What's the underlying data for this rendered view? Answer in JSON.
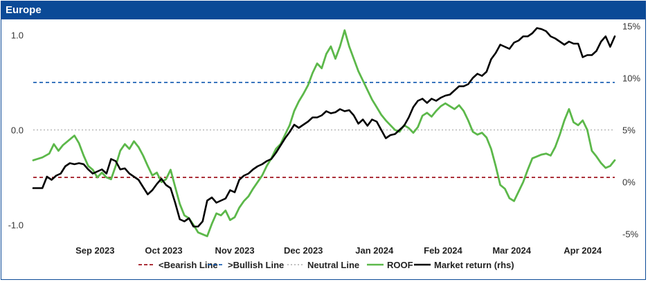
{
  "panel": {
    "title": "Europe"
  },
  "chart_data": {
    "type": "line",
    "title": "Europe",
    "x_labels": [
      "Sep 2023",
      "Oct 2023",
      "Nov 2023",
      "Dec 2023",
      "Jan 2024",
      "Feb 2024",
      "Mar 2024",
      "Apr 2024"
    ],
    "left_axis": {
      "ticks": [
        "1.0",
        "0.0",
        "-1.0"
      ],
      "ylim": [
        -1.15,
        1.15
      ]
    },
    "right_axis": {
      "ticks": [
        "15%",
        "10%",
        "5%",
        "0%",
        "-5%"
      ],
      "ylim": [
        -5.5,
        15.5
      ]
    },
    "reference_lines": [
      {
        "name": "<Bearish Line",
        "value": -0.5,
        "color": "#a0141e",
        "dash": "dashed"
      },
      {
        "name": ">Bullish Line",
        "value": 0.5,
        "color": "#1f63b5",
        "dash": "dashed"
      },
      {
        "name": "Neutral Line",
        "value": 0.0,
        "color": "#b8b8b8",
        "dash": "dotted"
      }
    ],
    "series": [
      {
        "name": "ROOF",
        "axis": "left",
        "color": "#5cb84a",
        "points": [
          [
            "2023-08-20",
            -0.32
          ],
          [
            "2023-08-24",
            -0.29
          ],
          [
            "2023-08-27",
            -0.25
          ],
          [
            "2023-08-29",
            -0.15
          ],
          [
            "2023-08-31",
            -0.22
          ],
          [
            "2023-09-02",
            -0.16
          ],
          [
            "2023-09-05",
            -0.1
          ],
          [
            "2023-09-07",
            -0.06
          ],
          [
            "2023-09-09",
            -0.14
          ],
          [
            "2023-09-11",
            -0.27
          ],
          [
            "2023-09-13",
            -0.38
          ],
          [
            "2023-09-15",
            -0.42
          ],
          [
            "2023-09-17",
            -0.5
          ],
          [
            "2023-09-19",
            -0.45
          ],
          [
            "2023-09-21",
            -0.5
          ],
          [
            "2023-09-23",
            -0.52
          ],
          [
            "2023-09-25",
            -0.38
          ],
          [
            "2023-09-27",
            -0.22
          ],
          [
            "2023-09-29",
            -0.15
          ],
          [
            "2023-10-01",
            -0.2
          ],
          [
            "2023-10-03",
            -0.12
          ],
          [
            "2023-10-05",
            -0.18
          ],
          [
            "2023-10-07",
            -0.27
          ],
          [
            "2023-10-09",
            -0.38
          ],
          [
            "2023-10-11",
            -0.48
          ],
          [
            "2023-10-13",
            -0.45
          ],
          [
            "2023-10-15",
            -0.55
          ],
          [
            "2023-10-17",
            -0.52
          ],
          [
            "2023-10-19",
            -0.42
          ],
          [
            "2023-10-21",
            -0.6
          ],
          [
            "2023-10-23",
            -0.78
          ],
          [
            "2023-10-25",
            -0.9
          ],
          [
            "2023-10-27",
            -0.93
          ],
          [
            "2023-10-29",
            -1.0
          ],
          [
            "2023-10-31",
            -1.08
          ],
          [
            "2023-11-02",
            -1.1
          ],
          [
            "2023-11-04",
            -1.12
          ],
          [
            "2023-11-06",
            -0.99
          ],
          [
            "2023-11-08",
            -0.88
          ],
          [
            "2023-11-10",
            -0.9
          ],
          [
            "2023-11-12",
            -0.85
          ],
          [
            "2023-11-14",
            -0.95
          ],
          [
            "2023-11-16",
            -0.92
          ],
          [
            "2023-11-18",
            -0.82
          ],
          [
            "2023-11-20",
            -0.75
          ],
          [
            "2023-11-22",
            -0.7
          ],
          [
            "2023-11-24",
            -0.62
          ],
          [
            "2023-11-26",
            -0.55
          ],
          [
            "2023-11-28",
            -0.48
          ],
          [
            "2023-11-30",
            -0.38
          ],
          [
            "2023-12-02",
            -0.3
          ],
          [
            "2023-12-04",
            -0.2
          ],
          [
            "2023-12-06",
            -0.15
          ],
          [
            "2023-12-08",
            -0.05
          ],
          [
            "2023-12-10",
            0.05
          ],
          [
            "2023-12-12",
            0.2
          ],
          [
            "2023-12-14",
            0.3
          ],
          [
            "2023-12-16",
            0.38
          ],
          [
            "2023-12-18",
            0.47
          ],
          [
            "2023-12-20",
            0.6
          ],
          [
            "2023-12-22",
            0.7
          ],
          [
            "2023-12-24",
            0.65
          ],
          [
            "2023-12-26",
            0.8
          ],
          [
            "2023-12-28",
            0.88
          ],
          [
            "2023-12-30",
            0.75
          ],
          [
            "2024-01-01",
            0.88
          ],
          [
            "2024-01-03",
            1.05
          ],
          [
            "2024-01-05",
            0.88
          ],
          [
            "2024-01-07",
            0.75
          ],
          [
            "2024-01-09",
            0.62
          ],
          [
            "2024-01-11",
            0.52
          ],
          [
            "2024-01-13",
            0.42
          ],
          [
            "2024-01-15",
            0.32
          ],
          [
            "2024-01-17",
            0.24
          ],
          [
            "2024-01-19",
            0.16
          ],
          [
            "2024-01-21",
            0.1
          ],
          [
            "2024-01-23",
            0.05
          ],
          [
            "2024-01-25",
            0.0
          ],
          [
            "2024-01-27",
            -0.02
          ],
          [
            "2024-01-29",
            0.05
          ],
          [
            "2024-01-31",
            0.02
          ],
          [
            "2024-02-02",
            -0.03
          ],
          [
            "2024-02-04",
            0.03
          ],
          [
            "2024-02-06",
            0.15
          ],
          [
            "2024-02-08",
            0.18
          ],
          [
            "2024-02-10",
            0.14
          ],
          [
            "2024-02-12",
            0.2
          ],
          [
            "2024-02-14",
            0.25
          ],
          [
            "2024-02-16",
            0.28
          ],
          [
            "2024-02-18",
            0.25
          ],
          [
            "2024-02-20",
            0.22
          ],
          [
            "2024-02-22",
            0.26
          ],
          [
            "2024-02-24",
            0.2
          ],
          [
            "2024-02-26",
            0.1
          ],
          [
            "2024-02-28",
            -0.02
          ],
          [
            "2024-03-01",
            -0.05
          ],
          [
            "2024-03-03",
            -0.03
          ],
          [
            "2024-03-05",
            -0.08
          ],
          [
            "2024-03-07",
            -0.2
          ],
          [
            "2024-03-09",
            -0.38
          ],
          [
            "2024-03-11",
            -0.58
          ],
          [
            "2024-03-13",
            -0.62
          ],
          [
            "2024-03-15",
            -0.72
          ],
          [
            "2024-03-17",
            -0.75
          ],
          [
            "2024-03-19",
            -0.65
          ],
          [
            "2024-03-21",
            -0.55
          ],
          [
            "2024-03-23",
            -0.42
          ],
          [
            "2024-03-25",
            -0.3
          ],
          [
            "2024-03-27",
            -0.28
          ],
          [
            "2024-03-29",
            -0.26
          ],
          [
            "2024-03-31",
            -0.25
          ],
          [
            "2024-04-02",
            -0.27
          ],
          [
            "2024-04-04",
            -0.18
          ],
          [
            "2024-04-06",
            -0.05
          ],
          [
            "2024-04-08",
            0.1
          ],
          [
            "2024-04-10",
            0.22
          ],
          [
            "2024-04-12",
            0.08
          ],
          [
            "2024-04-14",
            0.05
          ],
          [
            "2024-04-16",
            0.1
          ],
          [
            "2024-04-18",
            0.0
          ],
          [
            "2024-04-20",
            -0.22
          ],
          [
            "2024-04-22",
            -0.28
          ],
          [
            "2024-04-24",
            -0.35
          ],
          [
            "2024-04-26",
            -0.4
          ],
          [
            "2024-04-28",
            -0.38
          ],
          [
            "2024-04-30",
            -0.32
          ]
        ]
      },
      {
        "name": "Market return (rhs)",
        "axis": "right",
        "color": "#000000",
        "points": [
          [
            "2023-08-20",
            -0.6
          ],
          [
            "2023-08-24",
            -0.6
          ],
          [
            "2023-08-26",
            0.5
          ],
          [
            "2023-08-28",
            0.2
          ],
          [
            "2023-08-30",
            0.6
          ],
          [
            "2023-09-01",
            0.8
          ],
          [
            "2023-09-03",
            1.5
          ],
          [
            "2023-09-05",
            1.8
          ],
          [
            "2023-09-07",
            1.7
          ],
          [
            "2023-09-09",
            1.8
          ],
          [
            "2023-09-11",
            1.7
          ],
          [
            "2023-09-13",
            1.2
          ],
          [
            "2023-09-15",
            0.8
          ],
          [
            "2023-09-17",
            1.0
          ],
          [
            "2023-09-19",
            1.2
          ],
          [
            "2023-09-21",
            0.8
          ],
          [
            "2023-09-23",
            2.2
          ],
          [
            "2023-09-25",
            2.0
          ],
          [
            "2023-09-27",
            1.2
          ],
          [
            "2023-09-29",
            1.3
          ],
          [
            "2023-10-01",
            0.8
          ],
          [
            "2023-10-03",
            0.5
          ],
          [
            "2023-10-05",
            0.2
          ],
          [
            "2023-10-07",
            -0.5
          ],
          [
            "2023-10-09",
            -1.2
          ],
          [
            "2023-10-11",
            -0.8
          ],
          [
            "2023-10-13",
            -0.2
          ],
          [
            "2023-10-15",
            0.3
          ],
          [
            "2023-10-17",
            -0.3
          ],
          [
            "2023-10-19",
            -0.6
          ],
          [
            "2023-10-21",
            -2.0
          ],
          [
            "2023-10-23",
            -3.6
          ],
          [
            "2023-10-25",
            -3.8
          ],
          [
            "2023-10-27",
            -3.5
          ],
          [
            "2023-10-29",
            -4.3
          ],
          [
            "2023-10-31",
            -4.3
          ],
          [
            "2023-11-02",
            -3.8
          ],
          [
            "2023-11-04",
            -1.8
          ],
          [
            "2023-11-06",
            -1.5
          ],
          [
            "2023-11-08",
            -2.0
          ],
          [
            "2023-11-10",
            -1.8
          ],
          [
            "2023-11-12",
            -1.6
          ],
          [
            "2023-11-14",
            -0.8
          ],
          [
            "2023-11-16",
            -1.0
          ],
          [
            "2023-11-18",
            0.2
          ],
          [
            "2023-11-20",
            0.6
          ],
          [
            "2023-11-22",
            0.8
          ],
          [
            "2023-11-24",
            1.2
          ],
          [
            "2023-11-26",
            1.5
          ],
          [
            "2023-11-28",
            1.7
          ],
          [
            "2023-11-30",
            2.0
          ],
          [
            "2023-12-02",
            2.2
          ],
          [
            "2023-12-04",
            2.8
          ],
          [
            "2023-12-06",
            3.5
          ],
          [
            "2023-12-08",
            4.2
          ],
          [
            "2023-12-10",
            4.8
          ],
          [
            "2023-12-12",
            5.5
          ],
          [
            "2023-12-14",
            5.2
          ],
          [
            "2023-12-16",
            5.5
          ],
          [
            "2023-12-18",
            5.8
          ],
          [
            "2023-12-20",
            6.2
          ],
          [
            "2023-12-22",
            6.2
          ],
          [
            "2023-12-24",
            6.4
          ],
          [
            "2023-12-26",
            6.8
          ],
          [
            "2023-12-28",
            6.6
          ],
          [
            "2023-12-30",
            6.7
          ],
          [
            "2024-01-01",
            7.0
          ],
          [
            "2024-01-03",
            6.8
          ],
          [
            "2024-01-05",
            6.9
          ],
          [
            "2024-01-07",
            6.4
          ],
          [
            "2024-01-09",
            5.6
          ],
          [
            "2024-01-11",
            6.0
          ],
          [
            "2024-01-13",
            5.4
          ],
          [
            "2024-01-15",
            6.0
          ],
          [
            "2024-01-17",
            5.8
          ],
          [
            "2024-01-19",
            5.0
          ],
          [
            "2024-01-21",
            4.2
          ],
          [
            "2024-01-23",
            4.5
          ],
          [
            "2024-01-25",
            4.6
          ],
          [
            "2024-01-27",
            5.0
          ],
          [
            "2024-01-29",
            5.4
          ],
          [
            "2024-01-31",
            6.2
          ],
          [
            "2024-02-02",
            7.2
          ],
          [
            "2024-02-04",
            7.8
          ],
          [
            "2024-02-06",
            8.0
          ],
          [
            "2024-02-08",
            7.6
          ],
          [
            "2024-02-10",
            8.0
          ],
          [
            "2024-02-12",
            7.8
          ],
          [
            "2024-02-14",
            8.1
          ],
          [
            "2024-02-16",
            8.3
          ],
          [
            "2024-02-18",
            8.4
          ],
          [
            "2024-02-20",
            8.8
          ],
          [
            "2024-02-22",
            9.2
          ],
          [
            "2024-02-24",
            9.2
          ],
          [
            "2024-02-26",
            9.4
          ],
          [
            "2024-02-28",
            10.0
          ],
          [
            "2024-03-01",
            10.4
          ],
          [
            "2024-03-03",
            10.2
          ],
          [
            "2024-03-05",
            10.6
          ],
          [
            "2024-03-07",
            11.8
          ],
          [
            "2024-03-09",
            12.4
          ],
          [
            "2024-03-11",
            13.2
          ],
          [
            "2024-03-13",
            13.0
          ],
          [
            "2024-03-15",
            12.8
          ],
          [
            "2024-03-17",
            13.4
          ],
          [
            "2024-03-19",
            13.6
          ],
          [
            "2024-03-21",
            14.0
          ],
          [
            "2024-03-23",
            14.0
          ],
          [
            "2024-03-25",
            14.3
          ],
          [
            "2024-03-27",
            14.8
          ],
          [
            "2024-03-29",
            14.7
          ],
          [
            "2024-03-31",
            14.5
          ],
          [
            "2024-04-02",
            14.0
          ],
          [
            "2024-04-04",
            13.8
          ],
          [
            "2024-04-06",
            13.5
          ],
          [
            "2024-04-08",
            13.2
          ],
          [
            "2024-04-10",
            13.5
          ],
          [
            "2024-04-12",
            13.3
          ],
          [
            "2024-04-14",
            13.3
          ],
          [
            "2024-04-16",
            12.0
          ],
          [
            "2024-04-18",
            12.2
          ],
          [
            "2024-04-20",
            12.2
          ],
          [
            "2024-04-22",
            12.6
          ],
          [
            "2024-04-24",
            13.5
          ],
          [
            "2024-04-26",
            14.0
          ],
          [
            "2024-04-28",
            13.0
          ],
          [
            "2024-04-30",
            14.0
          ]
        ]
      }
    ],
    "legend": {
      "position": "bottom",
      "entries": [
        {
          "label": "<Bearish Line",
          "color": "#a0141e",
          "dash": "dashed"
        },
        {
          "label": ">Bullish Line",
          "color": "#1f63b5",
          "dash": "dashed"
        },
        {
          "label": "Neutral Line",
          "color": "#b8b8b8",
          "dash": "dotted"
        },
        {
          "label": "ROOF",
          "color": "#5cb84a",
          "dash": "solid"
        },
        {
          "label": "Market return (rhs)",
          "color": "#000000",
          "dash": "solid"
        }
      ]
    },
    "grid": false
  }
}
